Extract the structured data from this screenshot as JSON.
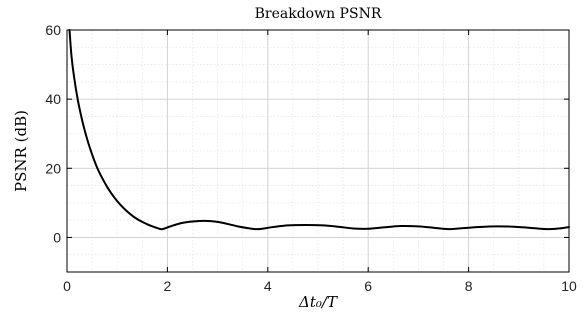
{
  "chart_data": {
    "type": "line",
    "title": "Breakdown PSNR",
    "xlabel": "Δt₀/T",
    "ylabel": "PSNR (dB)",
    "xlim": [
      0,
      10
    ],
    "ylim": [
      -10,
      60
    ],
    "xticks": [
      0,
      2,
      4,
      6,
      8,
      10
    ],
    "yticks": [
      0,
      20,
      40,
      60
    ],
    "xtick_labels": [
      "0",
      "2",
      "4",
      "6",
      "8",
      "10"
    ],
    "ytick_labels": [
      "0",
      "20",
      "40",
      "60"
    ],
    "minor_x_step": 0.5,
    "minor_y_step": 5,
    "grid": true,
    "line_color": "#000000",
    "series": [
      {
        "x": [
          0.05,
          0.1,
          0.2,
          0.3,
          0.4,
          0.5,
          0.6,
          0.7,
          0.8,
          0.9,
          1.0,
          1.1,
          1.2,
          1.3,
          1.4,
          1.5,
          1.6,
          1.7,
          1.8,
          1.9,
          2.1,
          2.3,
          2.5,
          2.75,
          3.0,
          3.2,
          3.4,
          3.6,
          3.8,
          4.1,
          4.4,
          4.75,
          5.1,
          5.4,
          5.7,
          6.0,
          6.3,
          6.65,
          7.0,
          7.3,
          7.6,
          7.9,
          8.2,
          8.55,
          8.9,
          9.2,
          9.55,
          9.8,
          10.0
        ],
        "y": [
          60,
          51,
          41,
          34,
          28.5,
          24,
          20.2,
          17.2,
          14.6,
          12.4,
          10.5,
          8.9,
          7.5,
          6.3,
          5.3,
          4.5,
          3.8,
          3.2,
          2.7,
          2.4,
          3.4,
          4.2,
          4.6,
          4.8,
          4.5,
          3.9,
          3.2,
          2.7,
          2.4,
          3.0,
          3.5,
          3.6,
          3.5,
          3.1,
          2.6,
          2.5,
          2.9,
          3.3,
          3.2,
          2.8,
          2.4,
          2.7,
          3.0,
          3.2,
          3.1,
          2.8,
          2.4,
          2.6,
          3.0
        ]
      }
    ]
  }
}
